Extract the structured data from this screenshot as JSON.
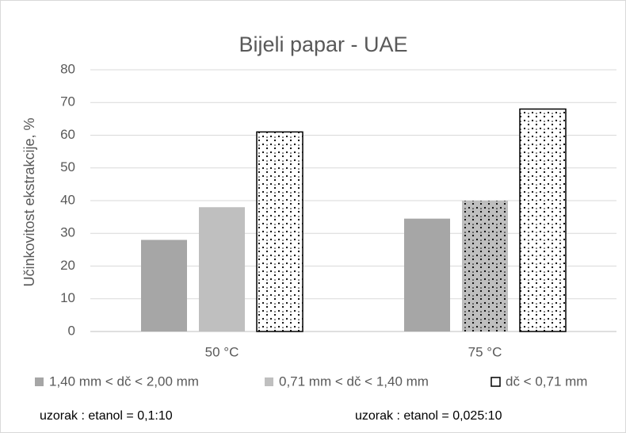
{
  "chart_data": {
    "type": "bar",
    "title": "Bijeli papar - UAE",
    "y_axis_label": "Učinkovitost ekstrakcije, %",
    "categories": [
      "50 °C",
      "75 °C"
    ],
    "series": [
      {
        "name": "1,40 mm < dč < 2,00 mm",
        "color": "#a6a6a6",
        "patterns": [
          "solid",
          "solid"
        ],
        "values": [
          28,
          34.5
        ]
      },
      {
        "name": "0,71 mm < dč < 1,40 mm",
        "color": "#bfbfbf",
        "patterns": [
          "solid",
          "dots"
        ],
        "values": [
          38,
          40
        ]
      },
      {
        "name": "dč < 0,71 mm",
        "color": "#ffffff",
        "outline": "#000000",
        "patterns": [
          "dots",
          "dots"
        ],
        "values": [
          61,
          68
        ]
      }
    ],
    "annotations": [
      "uzorak : etanol = 0,1:10",
      "uzorak : etanol = 0,025:10"
    ],
    "ylim": [
      0,
      80
    ],
    "yticks": [
      0,
      10,
      20,
      30,
      40,
      50,
      60,
      70,
      80
    ],
    "grid": true,
    "legend": "bottom"
  }
}
